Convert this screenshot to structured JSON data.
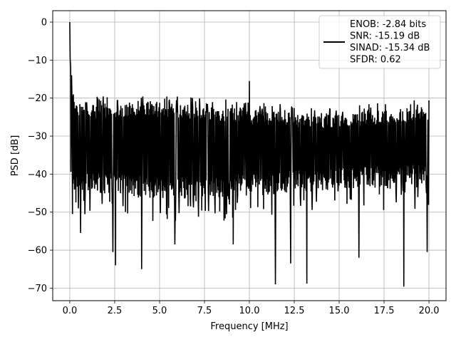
{
  "chart_data": {
    "type": "line",
    "title": "",
    "xlabel": "Frequency [MHz]",
    "ylabel": "PSD [dB]",
    "xlim": [
      -0.95,
      20.95
    ],
    "ylim": [
      -73.3,
      3.0
    ],
    "x_ticks": [
      0.0,
      2.5,
      5.0,
      7.5,
      10.0,
      12.5,
      15.0,
      17.5,
      20.0
    ],
    "x_tick_labels": [
      "0.0",
      "2.5",
      "5.0",
      "7.5",
      "10.0",
      "12.5",
      "15.0",
      "17.5",
      "20.0"
    ],
    "y_ticks": [
      0,
      -10,
      -20,
      -30,
      -40,
      -50,
      -60,
      -70
    ],
    "y_tick_labels": [
      "0",
      "−10",
      "−20",
      "−30",
      "−40",
      "−50",
      "−60",
      "−70"
    ],
    "grid": true,
    "legend_position": "top-right",
    "legend_entries": [
      "ENOB: -2.84 bits",
      "SNR: -15.19 dB",
      "SINAD: -15.34 dB",
      "SFDR: 0.62"
    ],
    "series": [
      {
        "color": "#000000",
        "x_range": [
          0.0,
          20.0
        ],
        "points": 1000,
        "envelope_upper_db": -22,
        "envelope_lower_db": -42,
        "peaks": [
          [
            0.0,
            0.0
          ],
          [
            0.02,
            -9.5
          ],
          [
            0.05,
            -12
          ],
          [
            0.1,
            -14
          ],
          [
            0.2,
            -19
          ],
          [
            10.0,
            -15.5
          ]
        ],
        "dips": [
          [
            0.15,
            -50.5
          ],
          [
            0.6,
            -55.5
          ],
          [
            2.4,
            -60.5
          ],
          [
            2.55,
            -64
          ],
          [
            4.0,
            -65
          ],
          [
            5.85,
            -58.5
          ],
          [
            9.1,
            -58.5
          ],
          [
            11.45,
            -69
          ],
          [
            12.3,
            -63.5
          ],
          [
            13.2,
            -68.8
          ],
          [
            16.1,
            -62
          ],
          [
            18.6,
            -69.6
          ],
          [
            19.9,
            -60.5
          ]
        ]
      }
    ]
  }
}
